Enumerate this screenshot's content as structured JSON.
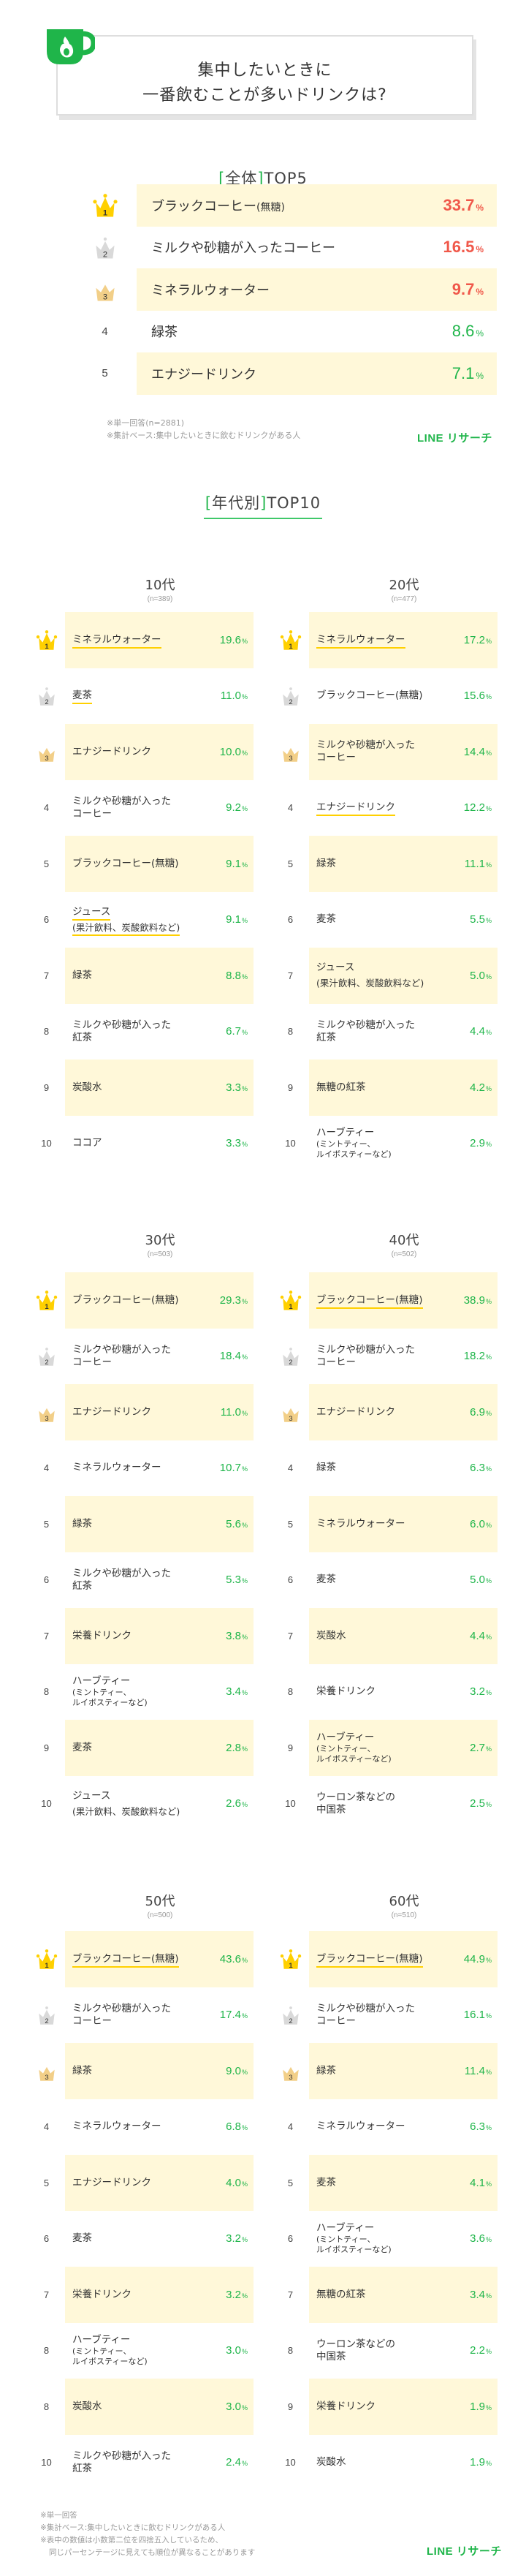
{
  "title": {
    "line1": "集中したいときに",
    "line2": "一番飲むことが多いドリンクは?",
    "icon": "coffee-cup-flame-icon"
  },
  "colors": {
    "brand_green": "#1fb54a",
    "highlight_row": "#fff8d9",
    "top3_red": "#f0584a",
    "underline_yellow": "#ffd000",
    "crown_gold": "#ffd000",
    "crown_silver": "#d9d9d9",
    "crown_bronze": "#f2cf88"
  },
  "overall": {
    "heading_bracket": "全体",
    "heading_suffix": "TOP5",
    "rows": [
      {
        "rank": "1",
        "name": "ブラックコーヒー",
        "name_suffix": "(無糖)",
        "value": "33.7",
        "unit": "%"
      },
      {
        "rank": "2",
        "name": "ミルクや砂糖が入ったコーヒー",
        "name_suffix": "",
        "value": "16.5",
        "unit": "%"
      },
      {
        "rank": "3",
        "name": "ミネラルウォーター",
        "name_suffix": "",
        "value": "9.7",
        "unit": "%"
      },
      {
        "rank": "4",
        "name": "緑茶",
        "name_suffix": "",
        "value": "8.6",
        "unit": "%"
      },
      {
        "rank": "5",
        "name": "エナジードリンク",
        "name_suffix": "",
        "value": "7.1",
        "unit": "%"
      }
    ],
    "notes": [
      "※単一回答(n=2881)",
      "※集計ベース:集中したいときに飲むドリンクがある人"
    ],
    "logo": "LINE リサーチ"
  },
  "by_age": {
    "heading_bracket": "年代別",
    "heading_suffix": "TOP10",
    "groups": [
      {
        "label": "10代",
        "n": "(n=389)",
        "rows": [
          {
            "rank": "1",
            "l1": "ミネラルウォーター",
            "l2": "",
            "value": "19.6",
            "underline": true
          },
          {
            "rank": "2",
            "l1": "麦茶",
            "l2": "",
            "value": "11.0",
            "underline": true
          },
          {
            "rank": "3",
            "l1": "エナジードリンク",
            "l2": "",
            "value": "10.0",
            "underline": false
          },
          {
            "rank": "4",
            "l1": "ミルクや砂糖が入った",
            "l2": "コーヒー",
            "value": "9.2",
            "underline": false
          },
          {
            "rank": "5",
            "l1": "ブラックコーヒー(無糖)",
            "l2": "",
            "value": "9.1",
            "underline": false
          },
          {
            "rank": "6",
            "l1": "ジュース",
            "l2": "(果汁飲料、炭酸飲料など)",
            "value": "9.1",
            "underline": true
          },
          {
            "rank": "7",
            "l1": "緑茶",
            "l2": "",
            "value": "8.8",
            "underline": false
          },
          {
            "rank": "8",
            "l1": "ミルクや砂糖が入った",
            "l2": "紅茶",
            "value": "6.7",
            "underline": false
          },
          {
            "rank": "9",
            "l1": "炭酸水",
            "l2": "",
            "value": "3.3",
            "underline": false
          },
          {
            "rank": "10",
            "l1": "ココア",
            "l2": "",
            "value": "3.3",
            "underline": false
          }
        ]
      },
      {
        "label": "20代",
        "n": "(n=477)",
        "rows": [
          {
            "rank": "1",
            "l1": "ミネラルウォーター",
            "l2": "",
            "value": "17.2",
            "underline": true
          },
          {
            "rank": "2",
            "l1": "ブラックコーヒー(無糖)",
            "l2": "",
            "value": "15.6",
            "underline": false
          },
          {
            "rank": "3",
            "l1": "ミルクや砂糖が入った",
            "l2": "コーヒー",
            "value": "14.4",
            "underline": false
          },
          {
            "rank": "4",
            "l1": "エナジードリンク",
            "l2": "",
            "value": "12.2",
            "underline": true
          },
          {
            "rank": "5",
            "l1": "緑茶",
            "l2": "",
            "value": "11.1",
            "underline": false
          },
          {
            "rank": "6",
            "l1": "麦茶",
            "l2": "",
            "value": "5.5",
            "underline": false
          },
          {
            "rank": "7",
            "l1": "ジュース",
            "l2": "(果汁飲料、炭酸飲料など)",
            "value": "5.0",
            "underline": false
          },
          {
            "rank": "8",
            "l1": "ミルクや砂糖が入った",
            "l2": "紅茶",
            "value": "4.4",
            "underline": false
          },
          {
            "rank": "9",
            "l1": "無糖の紅茶",
            "l2": "",
            "value": "4.2",
            "underline": false
          },
          {
            "rank": "10",
            "l1": "ハーブティー",
            "l2": "(ミントティー、",
            "l3": "ルイボスティーなど)",
            "value": "2.9",
            "underline": false
          }
        ]
      },
      {
        "label": "30代",
        "n": "(n=503)",
        "rows": [
          {
            "rank": "1",
            "l1": "ブラックコーヒー(無糖)",
            "l2": "",
            "value": "29.3",
            "underline": false
          },
          {
            "rank": "2",
            "l1": "ミルクや砂糖が入った",
            "l2": "コーヒー",
            "value": "18.4",
            "underline": false
          },
          {
            "rank": "3",
            "l1": "エナジードリンク",
            "l2": "",
            "value": "11.0",
            "underline": false
          },
          {
            "rank": "4",
            "l1": "ミネラルウォーター",
            "l2": "",
            "value": "10.7",
            "underline": false
          },
          {
            "rank": "5",
            "l1": "緑茶",
            "l2": "",
            "value": "5.6",
            "underline": false
          },
          {
            "rank": "6",
            "l1": "ミルクや砂糖が入った",
            "l2": "紅茶",
            "value": "5.3",
            "underline": false
          },
          {
            "rank": "7",
            "l1": "栄養ドリンク",
            "l2": "",
            "value": "3.8",
            "underline": false
          },
          {
            "rank": "8",
            "l1": "ハーブティー",
            "l2": "(ミントティー、",
            "l3": "ルイボスティーなど)",
            "value": "3.4",
            "underline": false
          },
          {
            "rank": "9",
            "l1": "麦茶",
            "l2": "",
            "value": "2.8",
            "underline": false
          },
          {
            "rank": "10",
            "l1": "ジュース",
            "l2": "(果汁飲料、炭酸飲料など)",
            "value": "2.6",
            "underline": false
          }
        ]
      },
      {
        "label": "40代",
        "n": "(n=502)",
        "rows": [
          {
            "rank": "1",
            "l1": "ブラックコーヒー(無糖)",
            "l2": "",
            "value": "38.9",
            "underline": true
          },
          {
            "rank": "2",
            "l1": "ミルクや砂糖が入った",
            "l2": "コーヒー",
            "value": "18.2",
            "underline": false
          },
          {
            "rank": "3",
            "l1": "エナジードリンク",
            "l2": "",
            "value": "6.9",
            "underline": false
          },
          {
            "rank": "4",
            "l1": "緑茶",
            "l2": "",
            "value": "6.3",
            "underline": false
          },
          {
            "rank": "5",
            "l1": "ミネラルウォーター",
            "l2": "",
            "value": "6.0",
            "underline": false
          },
          {
            "rank": "6",
            "l1": "麦茶",
            "l2": "",
            "value": "5.0",
            "underline": false
          },
          {
            "rank": "7",
            "l1": "炭酸水",
            "l2": "",
            "value": "4.4",
            "underline": false
          },
          {
            "rank": "8",
            "l1": "栄養ドリンク",
            "l2": "",
            "value": "3.2",
            "underline": false
          },
          {
            "rank": "9",
            "l1": "ハーブティー",
            "l2": "(ミントティー、",
            "l3": "ルイボスティーなど)",
            "value": "2.7",
            "underline": false
          },
          {
            "rank": "10",
            "l1": "ウーロン茶などの",
            "l2": "中国茶",
            "value": "2.5",
            "underline": false
          }
        ]
      },
      {
        "label": "50代",
        "n": "(n=500)",
        "rows": [
          {
            "rank": "1",
            "l1": "ブラックコーヒー(無糖)",
            "l2": "",
            "value": "43.6",
            "underline": true
          },
          {
            "rank": "2",
            "l1": "ミルクや砂糖が入った",
            "l2": "コーヒー",
            "value": "17.4",
            "underline": false
          },
          {
            "rank": "3",
            "l1": "緑茶",
            "l2": "",
            "value": "9.0",
            "underline": false
          },
          {
            "rank": "4",
            "l1": "ミネラルウォーター",
            "l2": "",
            "value": "6.8",
            "underline": false
          },
          {
            "rank": "5",
            "l1": "エナジードリンク",
            "l2": "",
            "value": "4.0",
            "underline": false
          },
          {
            "rank": "6",
            "l1": "麦茶",
            "l2": "",
            "value": "3.2",
            "underline": false
          },
          {
            "rank": "7",
            "l1": "栄養ドリンク",
            "l2": "",
            "value": "3.2",
            "underline": false
          },
          {
            "rank": "8",
            "l1": "ハーブティー",
            "l2": "(ミントティー、",
            "l3": "ルイボスティーなど)",
            "value": "3.0",
            "underline": false
          },
          {
            "rank": "8",
            "l1": "炭酸水",
            "l2": "",
            "value": "3.0",
            "underline": false
          },
          {
            "rank": "10",
            "l1": "ミルクや砂糖が入った",
            "l2": "紅茶",
            "value": "2.4",
            "underline": false
          }
        ]
      },
      {
        "label": "60代",
        "n": "(n=510)",
        "rows": [
          {
            "rank": "1",
            "l1": "ブラックコーヒー(無糖)",
            "l2": "",
            "value": "44.9",
            "underline": true
          },
          {
            "rank": "2",
            "l1": "ミルクや砂糖が入った",
            "l2": "コーヒー",
            "value": "16.1",
            "underline": false
          },
          {
            "rank": "3",
            "l1": "緑茶",
            "l2": "",
            "value": "11.4",
            "underline": false
          },
          {
            "rank": "4",
            "l1": "ミネラルウォーター",
            "l2": "",
            "value": "6.3",
            "underline": false
          },
          {
            "rank": "5",
            "l1": "麦茶",
            "l2": "",
            "value": "4.1",
            "underline": false
          },
          {
            "rank": "6",
            "l1": "ハーブティー",
            "l2": "(ミントティー、",
            "l3": "ルイボスティーなど)",
            "value": "3.6",
            "underline": false
          },
          {
            "rank": "7",
            "l1": "無糖の紅茶",
            "l2": "",
            "value": "3.4",
            "underline": false
          },
          {
            "rank": "8",
            "l1": "ウーロン茶などの",
            "l2": "中国茶",
            "value": "2.2",
            "underline": false
          },
          {
            "rank": "9",
            "l1": "栄養ドリンク",
            "l2": "",
            "value": "1.9",
            "underline": false
          },
          {
            "rank": "10",
            "l1": "炭酸水",
            "l2": "",
            "value": "1.9",
            "underline": false
          }
        ]
      }
    ],
    "unit": "%",
    "notes": [
      "※単一回答",
      "※集計ベース:集中したいときに飲むドリンクがある人",
      "※表中の数値は小数第二位を四捨五入しているため、",
      "同じパーセンテージに見えても順位が異なることがあります"
    ],
    "logo": "LINE リサーチ"
  }
}
